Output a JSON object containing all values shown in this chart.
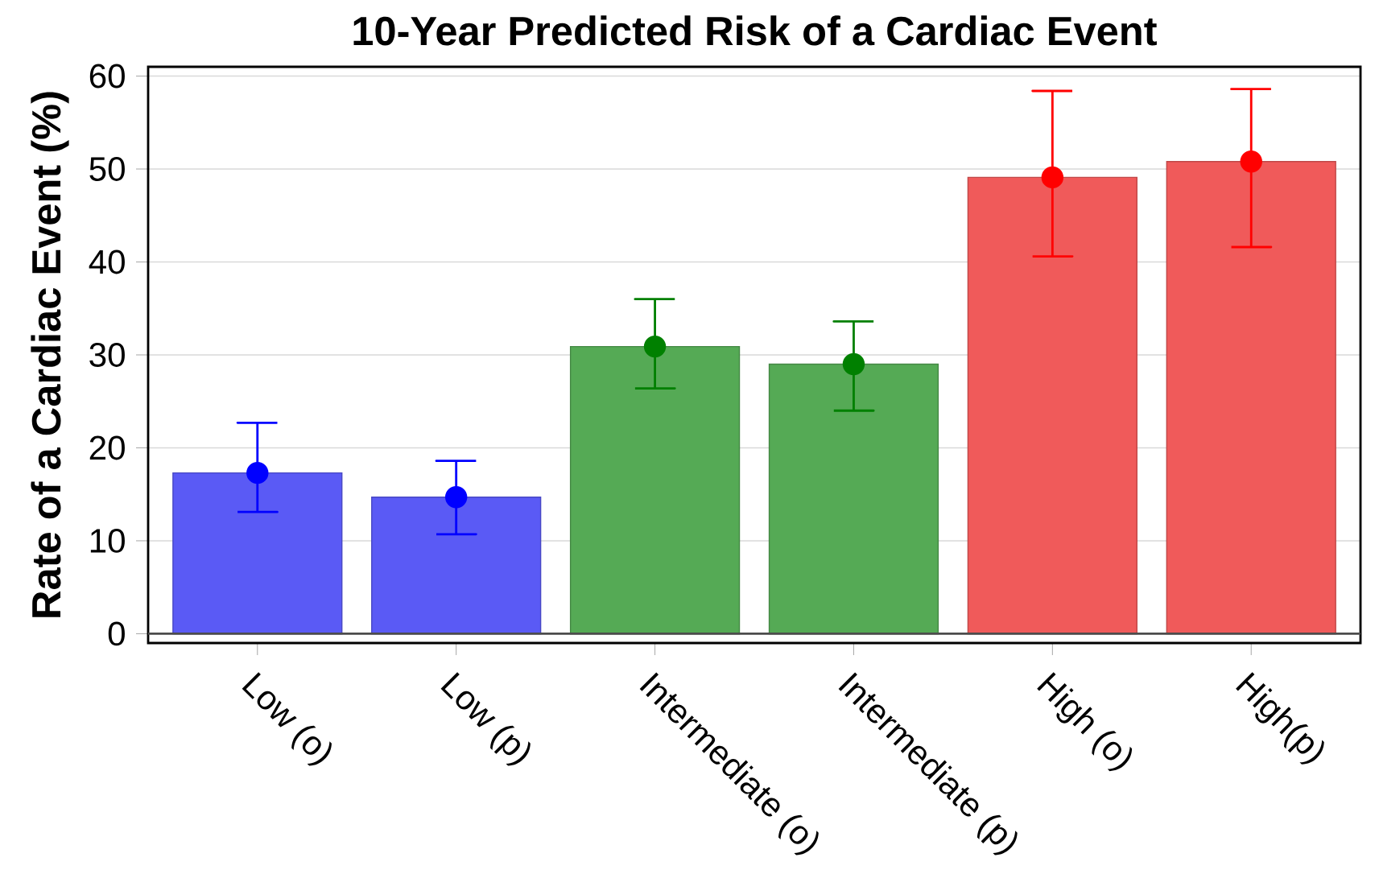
{
  "chart_data": {
    "type": "bar",
    "title": "10-Year Predicted Risk of a Cardiac Event",
    "ylabel": "Rate of a Cardiac Event (%)",
    "categories": [
      "Low (o)",
      "Low (p)",
      "Intermediate (o)",
      "Intermediate (p)",
      "High (o)",
      "High(p)"
    ],
    "series": [
      {
        "type": "bar",
        "values": [
          17.3,
          14.7,
          30.9,
          29.0,
          49.1,
          50.8
        ],
        "colors": [
          "#5a5af5",
          "#5a5af5",
          "#55aa55",
          "#55aa55",
          "#f05a5a",
          "#f05a5a"
        ]
      },
      {
        "type": "scatter",
        "x": [
          "Low (o)",
          "Low (p)",
          "Intermediate (o)",
          "Intermediate (p)",
          "High (o)",
          "High(p)"
        ],
        "values": [
          17.3,
          14.7,
          30.9,
          29.0,
          49.1,
          50.8
        ],
        "errors": [
          [
            13.1,
            22.7
          ],
          [
            10.7,
            18.6
          ],
          [
            26.4,
            36.0
          ],
          [
            24.0,
            33.6
          ],
          [
            40.6,
            58.4
          ],
          [
            41.6,
            58.6
          ]
        ],
        "colors": [
          "#0000ff",
          "#0000ff",
          "#008000",
          "#008000",
          "#ff0000",
          "#ff0000"
        ]
      }
    ],
    "ylim": [
      -1,
      61
    ],
    "yticks": [
      0,
      10,
      20,
      30,
      40,
      50,
      60
    ],
    "grid": "y",
    "marker": "circle"
  }
}
